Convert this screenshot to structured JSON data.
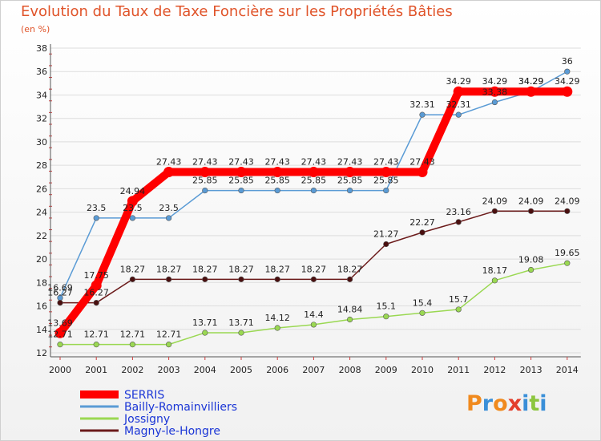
{
  "chart_data": {
    "type": "line",
    "title": "Evolution du Taux de Taxe Foncière sur les Propriétés Bâties",
    "ylabel": "(en %)",
    "x": [
      "2000",
      "2001",
      "2002",
      "2003",
      "2004",
      "2005",
      "2006",
      "2007",
      "2008",
      "2009",
      "2010",
      "2011",
      "2012",
      "2013",
      "2014"
    ],
    "ylim": [
      12,
      38
    ],
    "yticks": [
      12,
      14,
      16,
      18,
      20,
      22,
      24,
      26,
      28,
      30,
      32,
      34,
      36,
      38
    ],
    "series": [
      {
        "name": "SERRIS",
        "color": "#ff0000",
        "values": [
          13.69,
          17.75,
          24.94,
          27.43,
          27.43,
          27.43,
          27.43,
          27.43,
          27.43,
          27.43,
          27.43,
          34.29,
          34.29,
          34.29,
          34.29
        ],
        "labels": [
          "13.69",
          "17.75",
          "24.94",
          "27.43",
          "27.43",
          "27.43",
          "27.43",
          "27.43",
          "27.43",
          "27.43",
          "27.43",
          "34.29",
          "34.29",
          "34.29",
          "34.29"
        ]
      },
      {
        "name": "Bailly-Romainvilliers",
        "color": "#5a9bd5",
        "values": [
          16.69,
          23.5,
          23.5,
          23.5,
          25.85,
          25.85,
          25.85,
          25.85,
          25.85,
          25.85,
          32.31,
          32.31,
          33.38,
          34.29,
          36
        ],
        "labels": [
          "16.69",
          "23.5",
          "23.5",
          "23.5",
          "25.85",
          "25.85",
          "25.85",
          "25.85",
          "25.85",
          "25.85",
          "32.31",
          "32.31",
          "33.38",
          "34.29",
          "36"
        ]
      },
      {
        "name": "Jossigny",
        "color": "#9ad852",
        "values": [
          12.71,
          12.71,
          12.71,
          12.71,
          13.71,
          13.71,
          14.12,
          14.4,
          14.84,
          15.1,
          15.4,
          15.7,
          18.17,
          19.08,
          19.65
        ],
        "labels": [
          "12.71",
          "12.71",
          "12.71",
          "12.71",
          "13.71",
          "13.71",
          "14.12",
          "14.4",
          "14.84",
          "15.1",
          "15.4",
          "15.7",
          "18.17",
          "19.08",
          "19.65"
        ]
      },
      {
        "name": "Magny-le-Hongre",
        "color": "#6b1a1a",
        "values": [
          16.27,
          16.27,
          18.27,
          18.27,
          18.27,
          18.27,
          18.27,
          18.27,
          18.27,
          21.27,
          22.27,
          23.16,
          24.09,
          24.09,
          24.09
        ],
        "labels": [
          "16.27",
          "16.27",
          "18.27",
          "18.27",
          "18.27",
          "18.27",
          "18.27",
          "18.27",
          "18.27",
          "21.27",
          "22.27",
          "23.16",
          "24.09",
          "24.09",
          "24.09"
        ]
      }
    ]
  },
  "logo": {
    "letters": [
      "P",
      "r",
      "o",
      "x",
      "i",
      "t",
      "i"
    ],
    "colors": [
      "#f08a1e",
      "#3a8fd8",
      "#f08a1e",
      "#e33e2b",
      "#3a8fd8",
      "#8cc63f",
      "#3a8fd8"
    ]
  }
}
